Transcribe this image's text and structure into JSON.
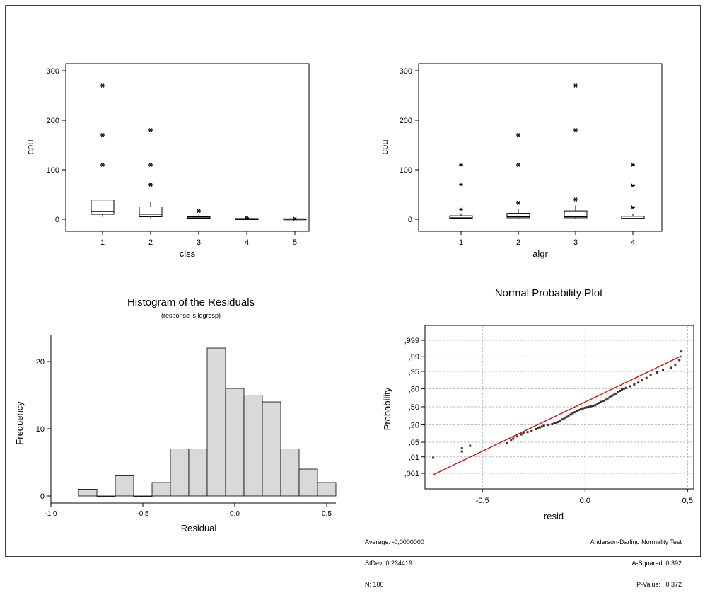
{
  "chart_data": [
    {
      "type": "boxplot",
      "xlabel": "clss",
      "ylabel": "cpu",
      "categories": [
        "1",
        "2",
        "3",
        "4",
        "5"
      ],
      "yticks": [
        0,
        100,
        200,
        300
      ],
      "ylim": [
        -8,
        300
      ],
      "boxes": [
        {
          "q1": 10,
          "median": 16,
          "q3": 39,
          "whisker_low": 5,
          "whisker_high": 40,
          "outliers": [
            110,
            170,
            270
          ]
        },
        {
          "q1": 5,
          "median": 10,
          "q3": 25,
          "whisker_low": 2,
          "whisker_high": 35,
          "outliers": [
            70,
            70,
            110,
            180
          ]
        },
        {
          "q1": 2,
          "median": 3,
          "q3": 5,
          "whisker_low": 1,
          "whisker_high": 8,
          "outliers": [
            17
          ]
        },
        {
          "q1": 0.5,
          "median": 1,
          "q3": 1.5,
          "whisker_low": 0,
          "whisker_high": 2,
          "outliers": [
            3
          ]
        },
        {
          "q1": 0.3,
          "median": 0.6,
          "q3": 1,
          "whisker_low": 0,
          "whisker_high": 1.2,
          "outliers": [
            1
          ]
        }
      ]
    },
    {
      "type": "boxplot",
      "xlabel": "algr",
      "ylabel": "cpu",
      "categories": [
        "1",
        "2",
        "3",
        "4"
      ],
      "yticks": [
        0,
        100,
        200,
        300
      ],
      "ylim": [
        -8,
        300
      ],
      "boxes": [
        {
          "q1": 2,
          "median": 3,
          "q3": 7,
          "whisker_low": 0,
          "whisker_high": 12,
          "outliers": [
            20,
            70,
            110
          ]
        },
        {
          "q1": 3,
          "median": 5,
          "q3": 12,
          "whisker_low": 0,
          "whisker_high": 20,
          "outliers": [
            33,
            110,
            170
          ]
        },
        {
          "q1": 3,
          "median": 5,
          "q3": 17,
          "whisker_low": 0,
          "whisker_high": 28,
          "outliers": [
            40,
            180,
            270
          ]
        },
        {
          "q1": 1,
          "median": 2,
          "q3": 6,
          "whisker_low": 0,
          "whisker_high": 10,
          "outliers": [
            24,
            68,
            110
          ]
        }
      ]
    },
    {
      "type": "histogram",
      "title": "Histogram of the Residuals",
      "subtitle": "(response is logresp)",
      "xlabel": "Residual",
      "ylabel": "Frequency",
      "bin_width": 0.1,
      "bin_centers": [
        -0.8,
        -0.7,
        -0.6,
        -0.5,
        -0.4,
        -0.3,
        -0.2,
        -0.1,
        0.0,
        0.1,
        0.2,
        0.3,
        0.4,
        0.5
      ],
      "values": [
        1,
        0,
        3,
        0,
        2,
        7,
        7,
        22,
        16,
        15,
        14,
        7,
        4,
        2
      ],
      "xticks": [
        "-1,0",
        "-0,5",
        "0,0",
        "0,5"
      ],
      "xtick_values": [
        -1.0,
        -0.5,
        0.0,
        0.5
      ],
      "yticks": [
        0,
        10,
        20
      ],
      "xlim": [
        -1.0,
        0.55
      ],
      "ylim": [
        0,
        23.5
      ]
    },
    {
      "type": "scatter",
      "title": "Normal Probability Plot",
      "xlabel": "resid",
      "ylabel": "Probability",
      "ytick_labels": [
        ",001",
        ",01",
        ",05",
        ",20",
        ",50",
        ",80",
        ",95",
        ",99",
        ",999"
      ],
      "ytick_probs": [
        0.001,
        0.01,
        0.05,
        0.2,
        0.5,
        0.8,
        0.95,
        0.99,
        0.999
      ],
      "xtick_labels": [
        "-0,5",
        "0,0",
        "0,5"
      ],
      "xtick_values": [
        -0.5,
        0.0,
        0.5
      ],
      "xlim": [
        -0.78,
        0.53
      ],
      "fit_line": {
        "x": [
          -0.74,
          0.47
        ],
        "p": [
          0.0008,
          0.991
        ],
        "color": "#d0100c"
      },
      "points": [
        {
          "x": -0.74,
          "p": 0.009
        },
        {
          "x": -0.6,
          "p": 0.019
        },
        {
          "x": -0.6,
          "p": 0.027
        },
        {
          "x": -0.56,
          "p": 0.035
        },
        {
          "x": -0.38,
          "p": 0.045
        },
        {
          "x": -0.36,
          "p": 0.06
        },
        {
          "x": -0.35,
          "p": 0.07
        },
        {
          "x": -0.33,
          "p": 0.085
        },
        {
          "x": -0.31,
          "p": 0.1
        },
        {
          "x": -0.3,
          "p": 0.11
        },
        {
          "x": -0.28,
          "p": 0.12
        },
        {
          "x": -0.26,
          "p": 0.13
        },
        {
          "x": -0.24,
          "p": 0.15
        },
        {
          "x": -0.23,
          "p": 0.16
        },
        {
          "x": -0.22,
          "p": 0.17
        },
        {
          "x": -0.21,
          "p": 0.18
        },
        {
          "x": -0.2,
          "p": 0.19
        },
        {
          "x": -0.18,
          "p": 0.2
        },
        {
          "x": -0.16,
          "p": 0.21
        },
        {
          "x": -0.15,
          "p": 0.22
        },
        {
          "x": -0.14,
          "p": 0.23
        },
        {
          "x": -0.13,
          "p": 0.24
        },
        {
          "x": -0.12,
          "p": 0.26
        },
        {
          "x": -0.11,
          "p": 0.28
        },
        {
          "x": -0.1,
          "p": 0.3
        },
        {
          "x": -0.09,
          "p": 0.32
        },
        {
          "x": -0.08,
          "p": 0.34
        },
        {
          "x": -0.07,
          "p": 0.36
        },
        {
          "x": -0.06,
          "p": 0.38
        },
        {
          "x": -0.05,
          "p": 0.4
        },
        {
          "x": -0.04,
          "p": 0.42
        },
        {
          "x": -0.03,
          "p": 0.44
        },
        {
          "x": -0.02,
          "p": 0.46
        },
        {
          "x": -0.01,
          "p": 0.47
        },
        {
          "x": 0.0,
          "p": 0.48
        },
        {
          "x": 0.01,
          "p": 0.49
        },
        {
          "x": 0.02,
          "p": 0.5
        },
        {
          "x": 0.03,
          "p": 0.51
        },
        {
          "x": 0.04,
          "p": 0.52
        },
        {
          "x": 0.05,
          "p": 0.53
        },
        {
          "x": 0.06,
          "p": 0.55
        },
        {
          "x": 0.07,
          "p": 0.57
        },
        {
          "x": 0.08,
          "p": 0.59
        },
        {
          "x": 0.09,
          "p": 0.61
        },
        {
          "x": 0.1,
          "p": 0.63
        },
        {
          "x": 0.11,
          "p": 0.65
        },
        {
          "x": 0.12,
          "p": 0.67
        },
        {
          "x": 0.13,
          "p": 0.69
        },
        {
          "x": 0.14,
          "p": 0.71
        },
        {
          "x": 0.15,
          "p": 0.73
        },
        {
          "x": 0.16,
          "p": 0.75
        },
        {
          "x": 0.17,
          "p": 0.77
        },
        {
          "x": 0.18,
          "p": 0.79
        },
        {
          "x": 0.19,
          "p": 0.8
        },
        {
          "x": 0.2,
          "p": 0.81
        },
        {
          "x": 0.22,
          "p": 0.83
        },
        {
          "x": 0.24,
          "p": 0.85
        },
        {
          "x": 0.26,
          "p": 0.87
        },
        {
          "x": 0.28,
          "p": 0.89
        },
        {
          "x": 0.3,
          "p": 0.91
        },
        {
          "x": 0.32,
          "p": 0.93
        },
        {
          "x": 0.35,
          "p": 0.945
        },
        {
          "x": 0.38,
          "p": 0.955
        },
        {
          "x": 0.42,
          "p": 0.965
        },
        {
          "x": 0.44,
          "p": 0.975
        },
        {
          "x": 0.46,
          "p": 0.985
        },
        {
          "x": 0.47,
          "p": 0.995
        }
      ],
      "stats_left": {
        "average": "Average: -0,0000000",
        "stdev": "StDev: 0,234419",
        "n": "N: 100"
      },
      "stats_right": {
        "test": "Anderson-Darling Normality Test",
        "a_squared": "A-Squared: 0,392",
        "p_value": "P-Value:   0,372"
      }
    }
  ]
}
